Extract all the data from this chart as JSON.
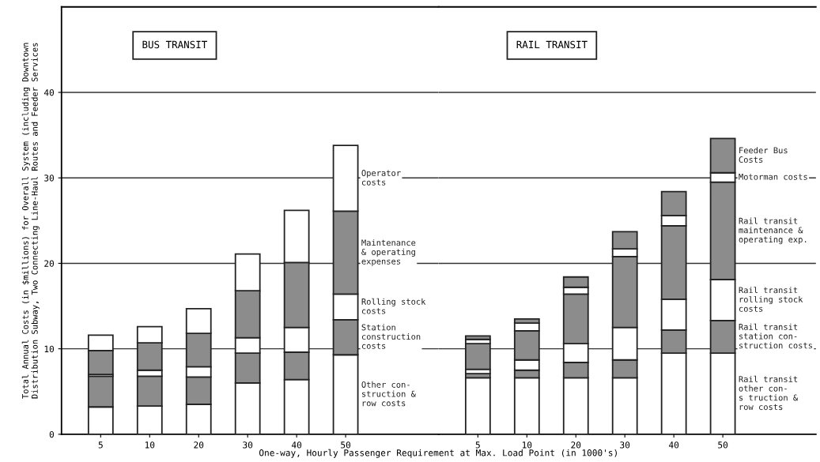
{
  "chart_data": [
    {
      "type": "bar",
      "title": "BUS TRANSIT",
      "stacked": true,
      "categories": [
        "5",
        "10",
        "20",
        "30",
        "40",
        "50"
      ],
      "ylabel": "Total Annual Costs (in $millions) for Overall System (including Downtown\nDistribution Subway, Two Connecting Line-Haul Routes and Feeder Services",
      "xlabel": "One-way, Hourly Passenger Requirement at Max. Load Point (in 1000's)",
      "ylim": [
        0,
        50
      ],
      "yticks": [
        0,
        10,
        20,
        30,
        40
      ],
      "grid": "y",
      "series": [
        {
          "name": "Other con-\nstruction &\nrow costs",
          "color": "#ffffff",
          "values": [
            3.2,
            3.3,
            3.5,
            6.0,
            6.4,
            9.3
          ]
        },
        {
          "name": "Station\nconstruction\ncosts",
          "color": "#8c8c8c",
          "values": [
            3.6,
            3.5,
            3.2,
            3.5,
            3.2,
            4.1
          ]
        },
        {
          "name": "Rolling stock\ncosts",
          "color": "#ffffff",
          "values": [
            0.2,
            0.7,
            1.2,
            1.8,
            2.9,
            3.0
          ]
        },
        {
          "name": "Maintenance\n& operating\nexpenses",
          "color": "#8c8c8c",
          "values": [
            2.8,
            3.2,
            3.9,
            5.5,
            7.6,
            9.7
          ]
        },
        {
          "name": "Operator\ncosts",
          "color": "#ffffff",
          "values": [
            1.8,
            1.9,
            2.9,
            4.3,
            6.1,
            7.7
          ]
        }
      ]
    },
    {
      "type": "bar",
      "title": "RAIL TRANSIT",
      "stacked": true,
      "categories": [
        "5",
        "10",
        "20",
        "30",
        "40",
        "50"
      ],
      "ylim": [
        0,
        50
      ],
      "grid": "y",
      "tick_labels": "x",
      "series": [
        {
          "name": "Rail transit\nother con-\ns truction &\nrow costs",
          "color": "#ffffff",
          "values": [
            6.6,
            6.6,
            6.6,
            6.6,
            9.5,
            9.5
          ]
        },
        {
          "name": "Rail transit\nstation con-\nstruction costs",
          "color": "#8c8c8c",
          "values": [
            0.5,
            0.9,
            1.8,
            2.1,
            2.7,
            3.8
          ]
        },
        {
          "name": "Rail transit\nrolling stock\ncosts",
          "color": "#ffffff",
          "values": [
            0.5,
            1.2,
            2.2,
            3.8,
            3.6,
            4.8
          ]
        },
        {
          "name": "Rail transit\nmaintenance &\noperating exp.",
          "color": "#8c8c8c",
          "values": [
            3.0,
            3.4,
            5.8,
            8.3,
            8.6,
            11.4
          ]
        },
        {
          "name": "Motorman costs",
          "color": "#ffffff",
          "values": [
            0.5,
            0.9,
            0.8,
            0.9,
            1.2,
            1.1
          ]
        },
        {
          "name": "Feeder Bus\nCosts",
          "color": "#8c8c8c",
          "values": [
            0.4,
            0.5,
            1.2,
            2.0,
            2.8,
            4.0
          ]
        }
      ]
    }
  ]
}
